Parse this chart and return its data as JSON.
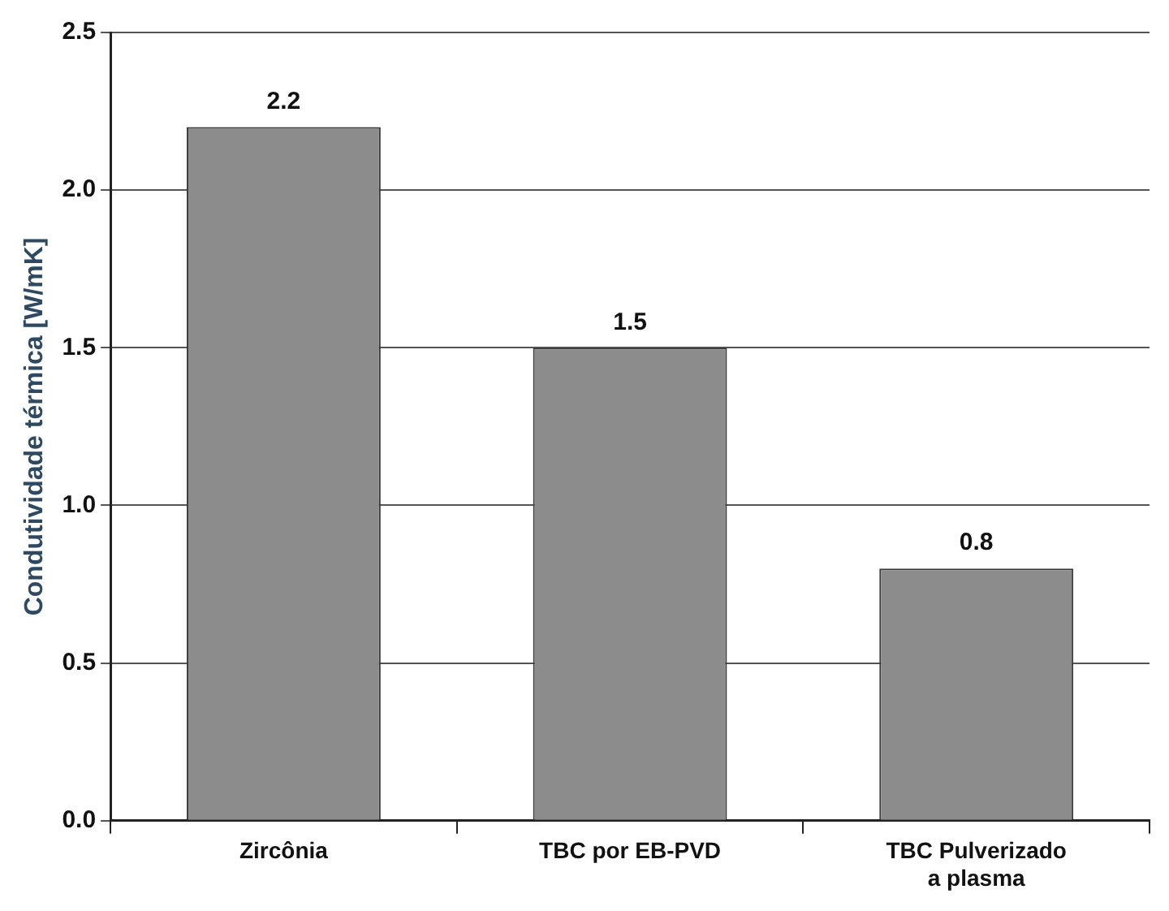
{
  "chart_data": {
    "type": "bar",
    "ylabel": "Condutividade térmica [W/mK]",
    "categories": [
      "Zircônia",
      "TBC por EB-PVD",
      "TBC Pulverizado a plasma"
    ],
    "values": [
      2.2,
      1.5,
      0.8
    ],
    "color": "#8c8c8c",
    "ylim": [
      0,
      2.5
    ],
    "yticks": [
      {
        "value": 0,
        "label": "0.0"
      },
      {
        "value": 0.5,
        "label": "0.5"
      },
      {
        "value": 1,
        "label": "1.0"
      },
      {
        "value": 1.5,
        "label": "1.5"
      },
      {
        "value": 2,
        "label": "2.0"
      },
      {
        "value": 2.5,
        "label": "2.5"
      }
    ],
    "grid": "y",
    "data_labels": true,
    "legend": false
  }
}
